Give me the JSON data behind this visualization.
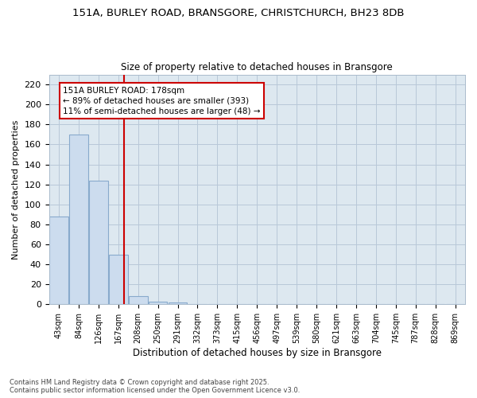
{
  "title_line1": "151A, BURLEY ROAD, BRANSGORE, CHRISTCHURCH, BH23 8DB",
  "title_line2": "Size of property relative to detached houses in Bransgore",
  "xlabel": "Distribution of detached houses by size in Bransgore",
  "ylabel": "Number of detached properties",
  "footnote": "Contains HM Land Registry data © Crown copyright and database right 2025.\nContains public sector information licensed under the Open Government Licence v3.0.",
  "bar_labels": [
    "43sqm",
    "84sqm",
    "126sqm",
    "167sqm",
    "208sqm",
    "250sqm",
    "291sqm",
    "332sqm",
    "373sqm",
    "415sqm",
    "456sqm",
    "497sqm",
    "539sqm",
    "580sqm",
    "621sqm",
    "663sqm",
    "704sqm",
    "745sqm",
    "787sqm",
    "828sqm",
    "869sqm"
  ],
  "bar_values": [
    88,
    170,
    124,
    50,
    8,
    3,
    2,
    0,
    0,
    0,
    0,
    0,
    0,
    0,
    0,
    0,
    0,
    0,
    0,
    0,
    0
  ],
  "bar_color": "#ccdcee",
  "bar_edgecolor": "#88aacc",
  "property_label": "151A BURLEY ROAD: 178sqm",
  "annotation_line2": "← 89% of detached houses are smaller (393)",
  "annotation_line3": "11% of semi-detached houses are larger (48) →",
  "vline_color": "#cc0000",
  "annotation_box_edgecolor": "#cc0000",
  "ylim": [
    0,
    230
  ],
  "yticks": [
    0,
    20,
    40,
    60,
    80,
    100,
    120,
    140,
    160,
    180,
    200,
    220
  ],
  "plot_bg_color": "#dde8f0",
  "background_color": "#ffffff",
  "grid_color": "#b8c8d8",
  "vline_x_bar_index": 3,
  "vline_x_offset": 0.27
}
